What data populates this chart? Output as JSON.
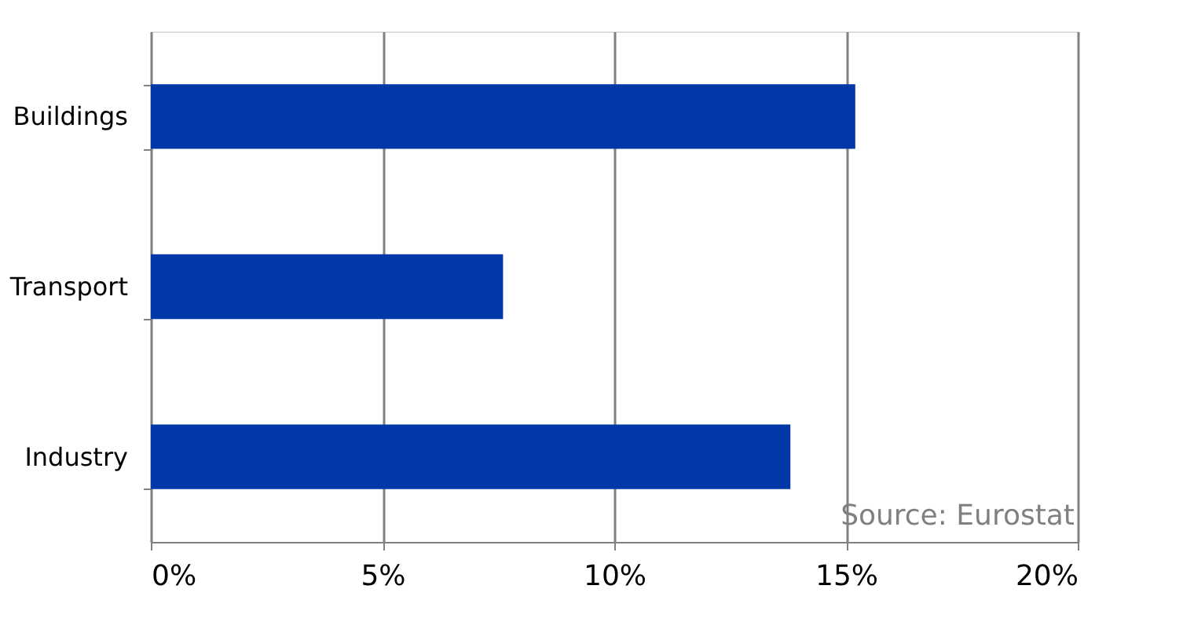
{
  "chart_data": {
    "type": "bar",
    "orientation": "horizontal",
    "categories": [
      "Buildings",
      "Transport",
      "Industry"
    ],
    "values": [
      15.2,
      7.6,
      13.8
    ],
    "color": "#0038a8",
    "xlim": [
      0,
      20
    ],
    "xticks": [
      {
        "value": 0,
        "label": "0%"
      },
      {
        "value": 5,
        "label": "5%"
      },
      {
        "value": 10,
        "label": "10%"
      },
      {
        "value": 15,
        "label": "15%"
      },
      {
        "value": 20,
        "label": "20%"
      }
    ],
    "grid": "x",
    "annotations": [
      "Source: Eurostat"
    ]
  }
}
